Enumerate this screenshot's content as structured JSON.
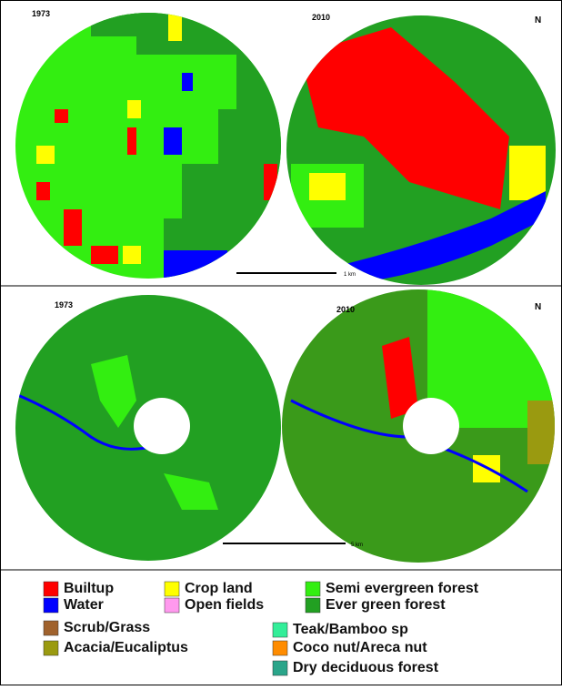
{
  "panels": [
    {
      "left_year": "1973",
      "right_year": "2010",
      "scale": "1 km",
      "north": "N"
    },
    {
      "left_year": "1973",
      "right_year": "2010",
      "scale": "5 km",
      "north": "N"
    }
  ],
  "legend": [
    {
      "label": "Builtup",
      "color": "#ff0000"
    },
    {
      "label": "Crop land",
      "color": "#ffff00"
    },
    {
      "label": "Semi evergreen forest",
      "color": "#33ee11"
    },
    {
      "label": "Water",
      "color": "#0000ff"
    },
    {
      "label": "Open fields",
      "color": "#ff99ee"
    },
    {
      "label": "Ever green forest",
      "color": "#22a022"
    },
    {
      "label": "Scrub/Grass",
      "color": "#a0622d"
    },
    {
      "label": "Teak/Bamboo sp",
      "color": "#33ee99"
    },
    {
      "label": "Acacia/Eucaliptus",
      "color": "#9a9a10"
    },
    {
      "label": "Coco nut/Areca nut",
      "color": "#ff8c00"
    },
    {
      "label": "Dry deciduous forest",
      "color": "#2aa58a"
    }
  ]
}
